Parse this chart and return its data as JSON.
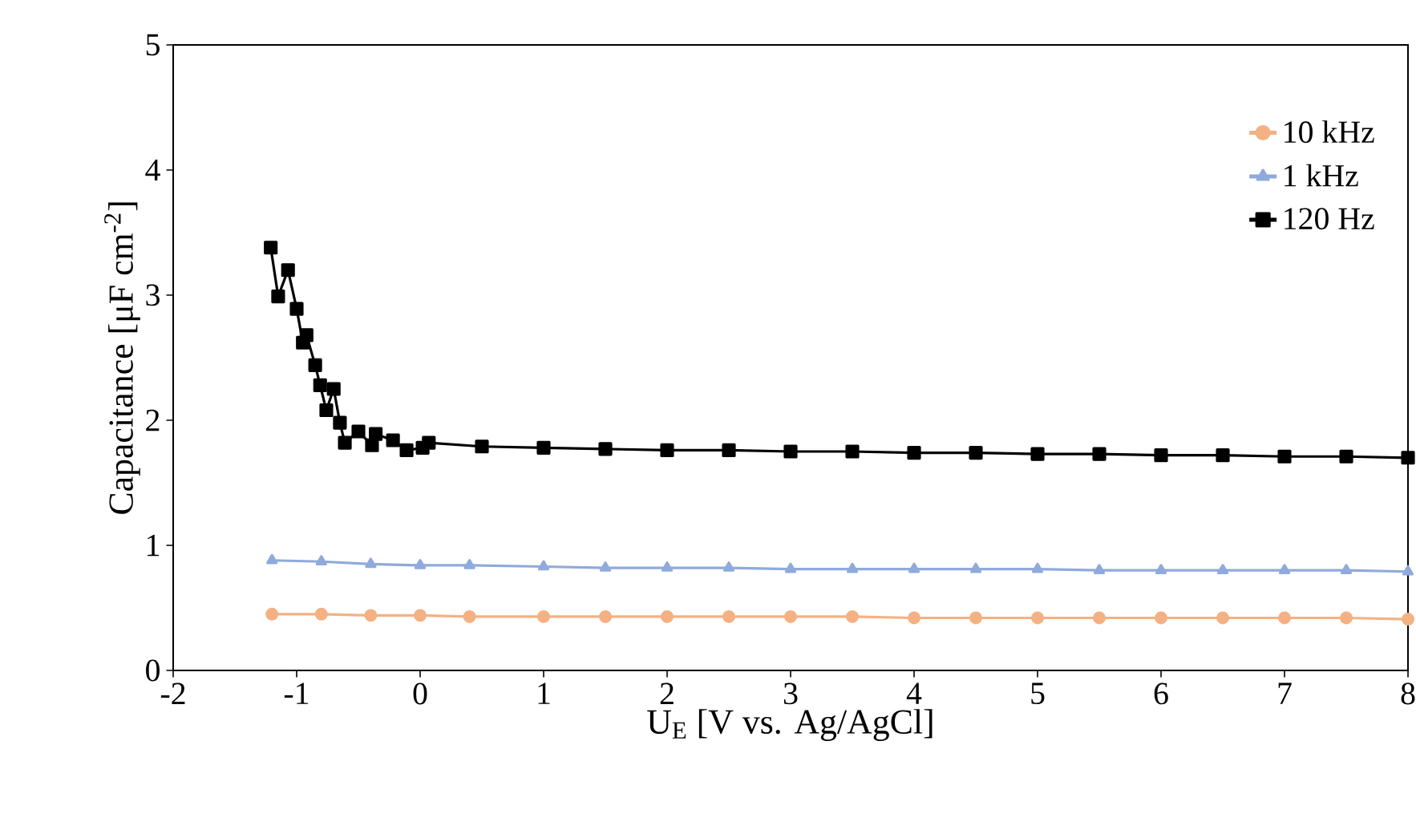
{
  "chart_data": {
    "type": "line",
    "xlabel": "U$_{E}$ [V vs. Ag/AgCl]",
    "ylabel": "Capacitance [μF cm$^{-2}$]",
    "xlim": [
      -2,
      8
    ],
    "xticks": [
      -2,
      -1,
      0,
      1,
      2,
      3,
      4,
      5,
      6,
      7,
      8
    ],
    "ylim": [
      0,
      5
    ],
    "yticks": [
      0,
      1,
      2,
      3,
      4,
      5
    ],
    "legend": "top right",
    "line_style": "solid",
    "series": [
      {
        "name": "10 kHz",
        "color": "#f4b183",
        "marker": "circle",
        "x": [
          -1.2,
          -0.8,
          -0.4,
          0,
          0.4,
          1,
          1.5,
          2,
          2.5,
          3,
          3.5,
          4,
          4.5,
          5,
          5.5,
          6,
          6.5,
          7,
          7.5,
          8
        ],
        "values": [
          0.45,
          0.45,
          0.44,
          0.44,
          0.43,
          0.43,
          0.43,
          0.43,
          0.43,
          0.43,
          0.43,
          0.42,
          0.42,
          0.42,
          0.42,
          0.42,
          0.42,
          0.42,
          0.42,
          0.41
        ]
      },
      {
        "name": "1 kHz",
        "color": "#8faadc",
        "marker": "triangle",
        "x": [
          -1.2,
          -0.8,
          -0.4,
          0,
          0.4,
          1,
          1.5,
          2,
          2.5,
          3,
          3.5,
          4,
          4.5,
          5,
          5.5,
          6,
          6.5,
          7,
          7.5,
          8
        ],
        "values": [
          0.88,
          0.87,
          0.85,
          0.84,
          0.84,
          0.83,
          0.82,
          0.82,
          0.82,
          0.81,
          0.81,
          0.81,
          0.81,
          0.81,
          0.8,
          0.8,
          0.8,
          0.8,
          0.8,
          0.79
        ]
      },
      {
        "name": "120 Hz",
        "color": "#000000",
        "marker": "square",
        "x": [
          -1.21,
          -1.15,
          -1.07,
          -1.0,
          -0.95,
          -0.92,
          -0.85,
          -0.81,
          -0.76,
          -0.7,
          -0.65,
          -0.61,
          -0.5,
          -0.39,
          -0.36,
          -0.22,
          -0.11,
          0.02,
          0.07,
          0.5,
          1,
          1.5,
          2,
          2.5,
          3,
          3.5,
          4,
          4.5,
          5,
          5.5,
          6,
          6.5,
          7,
          7.5,
          8
        ],
        "values": [
          3.38,
          2.99,
          3.2,
          2.89,
          2.62,
          2.68,
          2.44,
          2.28,
          2.08,
          2.25,
          1.98,
          1.82,
          1.91,
          1.8,
          1.89,
          1.84,
          1.76,
          1.78,
          1.82,
          1.79,
          1.78,
          1.77,
          1.76,
          1.76,
          1.75,
          1.75,
          1.74,
          1.74,
          1.73,
          1.73,
          1.72,
          1.72,
          1.71,
          1.71,
          1.7
        ]
      }
    ]
  }
}
